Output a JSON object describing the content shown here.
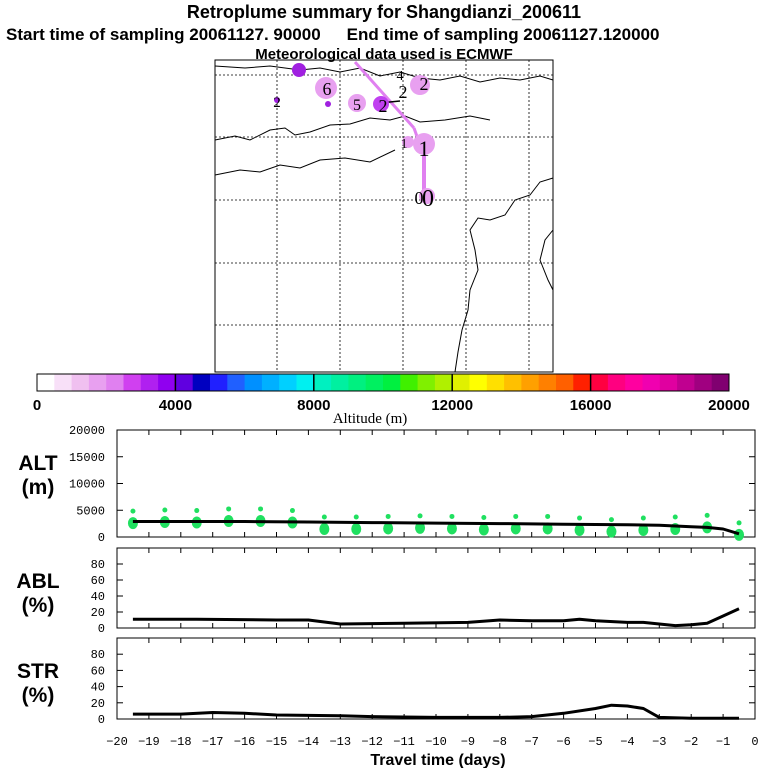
{
  "header": {
    "title": "Retroplume summary for Shangdianzi_200611",
    "start_label": "Start time of sampling 20061127. 90000",
    "end_label": "End time of sampling 20061127.120000",
    "met_label": "Meteorological data used is ECMWF"
  },
  "map": {
    "cluster_labels": [
      "6",
      "5",
      "2",
      "2",
      "2",
      "2",
      "4",
      "1",
      "1",
      "0",
      "0"
    ],
    "colors": {
      "path": "#e080f0",
      "cluster_light": "#e8a0f0",
      "cluster_dark": "#a020e0"
    }
  },
  "colorbar": {
    "axis_label": "Altitude (m)",
    "tick_labels": [
      "0",
      "4000",
      "8000",
      "12000",
      "16000",
      "20000"
    ],
    "range": [
      0,
      20000
    ],
    "colors": [
      "#ffffff",
      "#f8e0f8",
      "#f0c0f0",
      "#e8a0f0",
      "#e080f0",
      "#d040f0",
      "#b020f0",
      "#9000f0",
      "#6000e0",
      "#0000c0",
      "#2020ff",
      "#2060ff",
      "#0090ff",
      "#00b0ff",
      "#00d0ff",
      "#00f0f0",
      "#00f0c0",
      "#00f0a0",
      "#00f080",
      "#00f060",
      "#00f040",
      "#40f000",
      "#80f000",
      "#b0f000",
      "#e0f000",
      "#ffff00",
      "#ffe000",
      "#ffc000",
      "#ffa000",
      "#ff8000",
      "#ff6000",
      "#ff2000",
      "#ff0040",
      "#ff0080",
      "#ff00a0",
      "#f000b0",
      "#e000a0",
      "#c00090",
      "#a00080",
      "#800070"
    ]
  },
  "chart_data": [
    {
      "type": "line",
      "panel": "ALT",
      "ylabel_line1": "ALT",
      "ylabel_line2": "(m)",
      "ylim": [
        0,
        20000
      ],
      "yticks": [
        "20000",
        "15000",
        "10000",
        "5000",
        "0"
      ],
      "series": [
        {
          "name": "mean altitude",
          "x": [
            -19.5,
            -18,
            -16,
            -14,
            -12,
            -10,
            -8,
            -6,
            -4,
            -3,
            -2,
            -1.5,
            -1,
            -0.5
          ],
          "y": [
            2900,
            2900,
            2900,
            2800,
            2700,
            2600,
            2500,
            2400,
            2300,
            2200,
            1900,
            1800,
            1500,
            600
          ]
        }
      ],
      "scatter_x": [
        -19.5,
        -18.5,
        -17.5,
        -16.5,
        -15.5,
        -14.5,
        -13.5,
        -12.5,
        -11.5,
        -10.5,
        -9.5,
        -8.5,
        -7.5,
        -6.5,
        -5.5,
        -4.5,
        -3.5,
        -2.5,
        -1.5,
        -0.5
      ],
      "scatter_y": [
        2600,
        2800,
        2700,
        3000,
        3000,
        2700,
        1500,
        1500,
        1600,
        1700,
        1600,
        1400,
        1600,
        1600,
        1300,
        1000,
        1300,
        1500,
        1800,
        400
      ],
      "scatter_color": "#20e060"
    },
    {
      "type": "line",
      "panel": "ABL",
      "ylabel_line1": "ABL",
      "ylabel_line2": "(%)",
      "ylim": [
        0,
        100
      ],
      "yticks": [
        "80",
        "60",
        "40",
        "20",
        "0"
      ],
      "series": [
        {
          "name": "fraction in boundary layer",
          "x": [
            -19.5,
            -17.5,
            -15,
            -14,
            -13,
            -11,
            -9,
            -8,
            -7,
            -6,
            -5.5,
            -5,
            -4,
            -3.5,
            -3,
            -2.5,
            -2,
            -1.5,
            -1,
            -0.5
          ],
          "y": [
            11,
            11,
            10,
            10,
            5,
            6,
            7,
            10,
            9,
            9,
            11,
            9,
            7,
            7,
            5,
            3,
            4,
            6,
            15,
            24
          ]
        }
      ]
    },
    {
      "type": "line",
      "panel": "STR",
      "ylabel_line1": "STR",
      "ylabel_line2": "(%)",
      "ylim": [
        0,
        100
      ],
      "yticks": [
        "80",
        "60",
        "40",
        "20",
        "0"
      ],
      "xlabel": "Travel time (days)",
      "xlim": [
        -20,
        0
      ],
      "xticks": [
        "−20",
        "−19",
        "−18",
        "−17",
        "−16",
        "−15",
        "−14",
        "−13",
        "−12",
        "−11",
        "−10",
        "−9",
        "−8",
        "−7",
        "−6",
        "−5",
        "−4",
        "−3",
        "−2",
        "−1",
        "0"
      ],
      "series": [
        {
          "name": "fraction in stratosphere",
          "x": [
            -19.5,
            -18,
            -17,
            -16,
            -15,
            -13,
            -12,
            -10,
            -8,
            -7,
            -6,
            -5,
            -4.5,
            -4,
            -3.5,
            -3,
            -2,
            -1,
            -0.5
          ],
          "y": [
            6,
            6,
            8,
            7,
            5,
            4,
            3,
            2,
            2,
            3,
            7,
            13,
            17,
            16,
            13,
            2,
            1,
            1,
            1
          ]
        }
      ]
    }
  ]
}
